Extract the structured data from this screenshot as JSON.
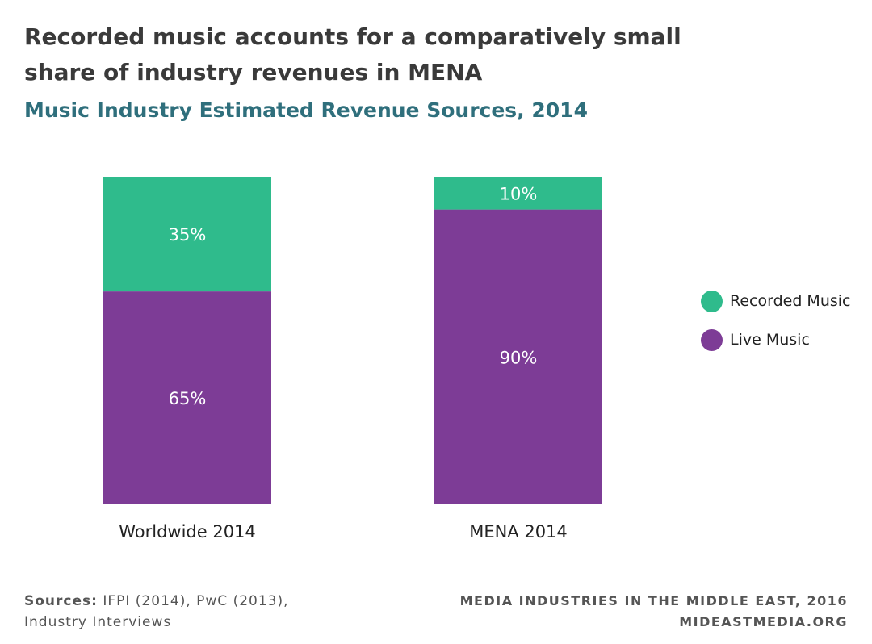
{
  "title": "Recorded music accounts for a comparatively small share of industry revenues in MENA",
  "subtitle": "Music Industry Estimated Revenue Sources, 2014",
  "chart_data": {
    "type": "bar",
    "stacked": true,
    "categories": [
      "Worldwide 2014",
      "MENA 2014"
    ],
    "series": [
      {
        "name": "Live Music",
        "values": [
          65,
          90
        ],
        "labels": [
          "65%",
          "90%"
        ],
        "color": "#7d3c96"
      },
      {
        "name": "Recorded Music",
        "values": [
          35,
          10
        ],
        "labels": [
          "35%",
          "10%"
        ],
        "color": "#2fbb8c"
      }
    ],
    "ylim": [
      0,
      100
    ],
    "unit": "%",
    "legend_placement": "right",
    "grid": false
  },
  "legend": [
    {
      "label": "Recorded Music",
      "color": "#2fbb8c"
    },
    {
      "label": "Live Music",
      "color": "#7d3c96"
    }
  ],
  "footer": {
    "sources_label": "Sources:",
    "sources_text": "IFPI (2014), PwC (2013), Industry Interviews",
    "credit_line1": "MEDIA INDUSTRIES IN THE MIDDLE EAST, 2016",
    "credit_line2": "MIDEASTMEDIA.ORG"
  }
}
